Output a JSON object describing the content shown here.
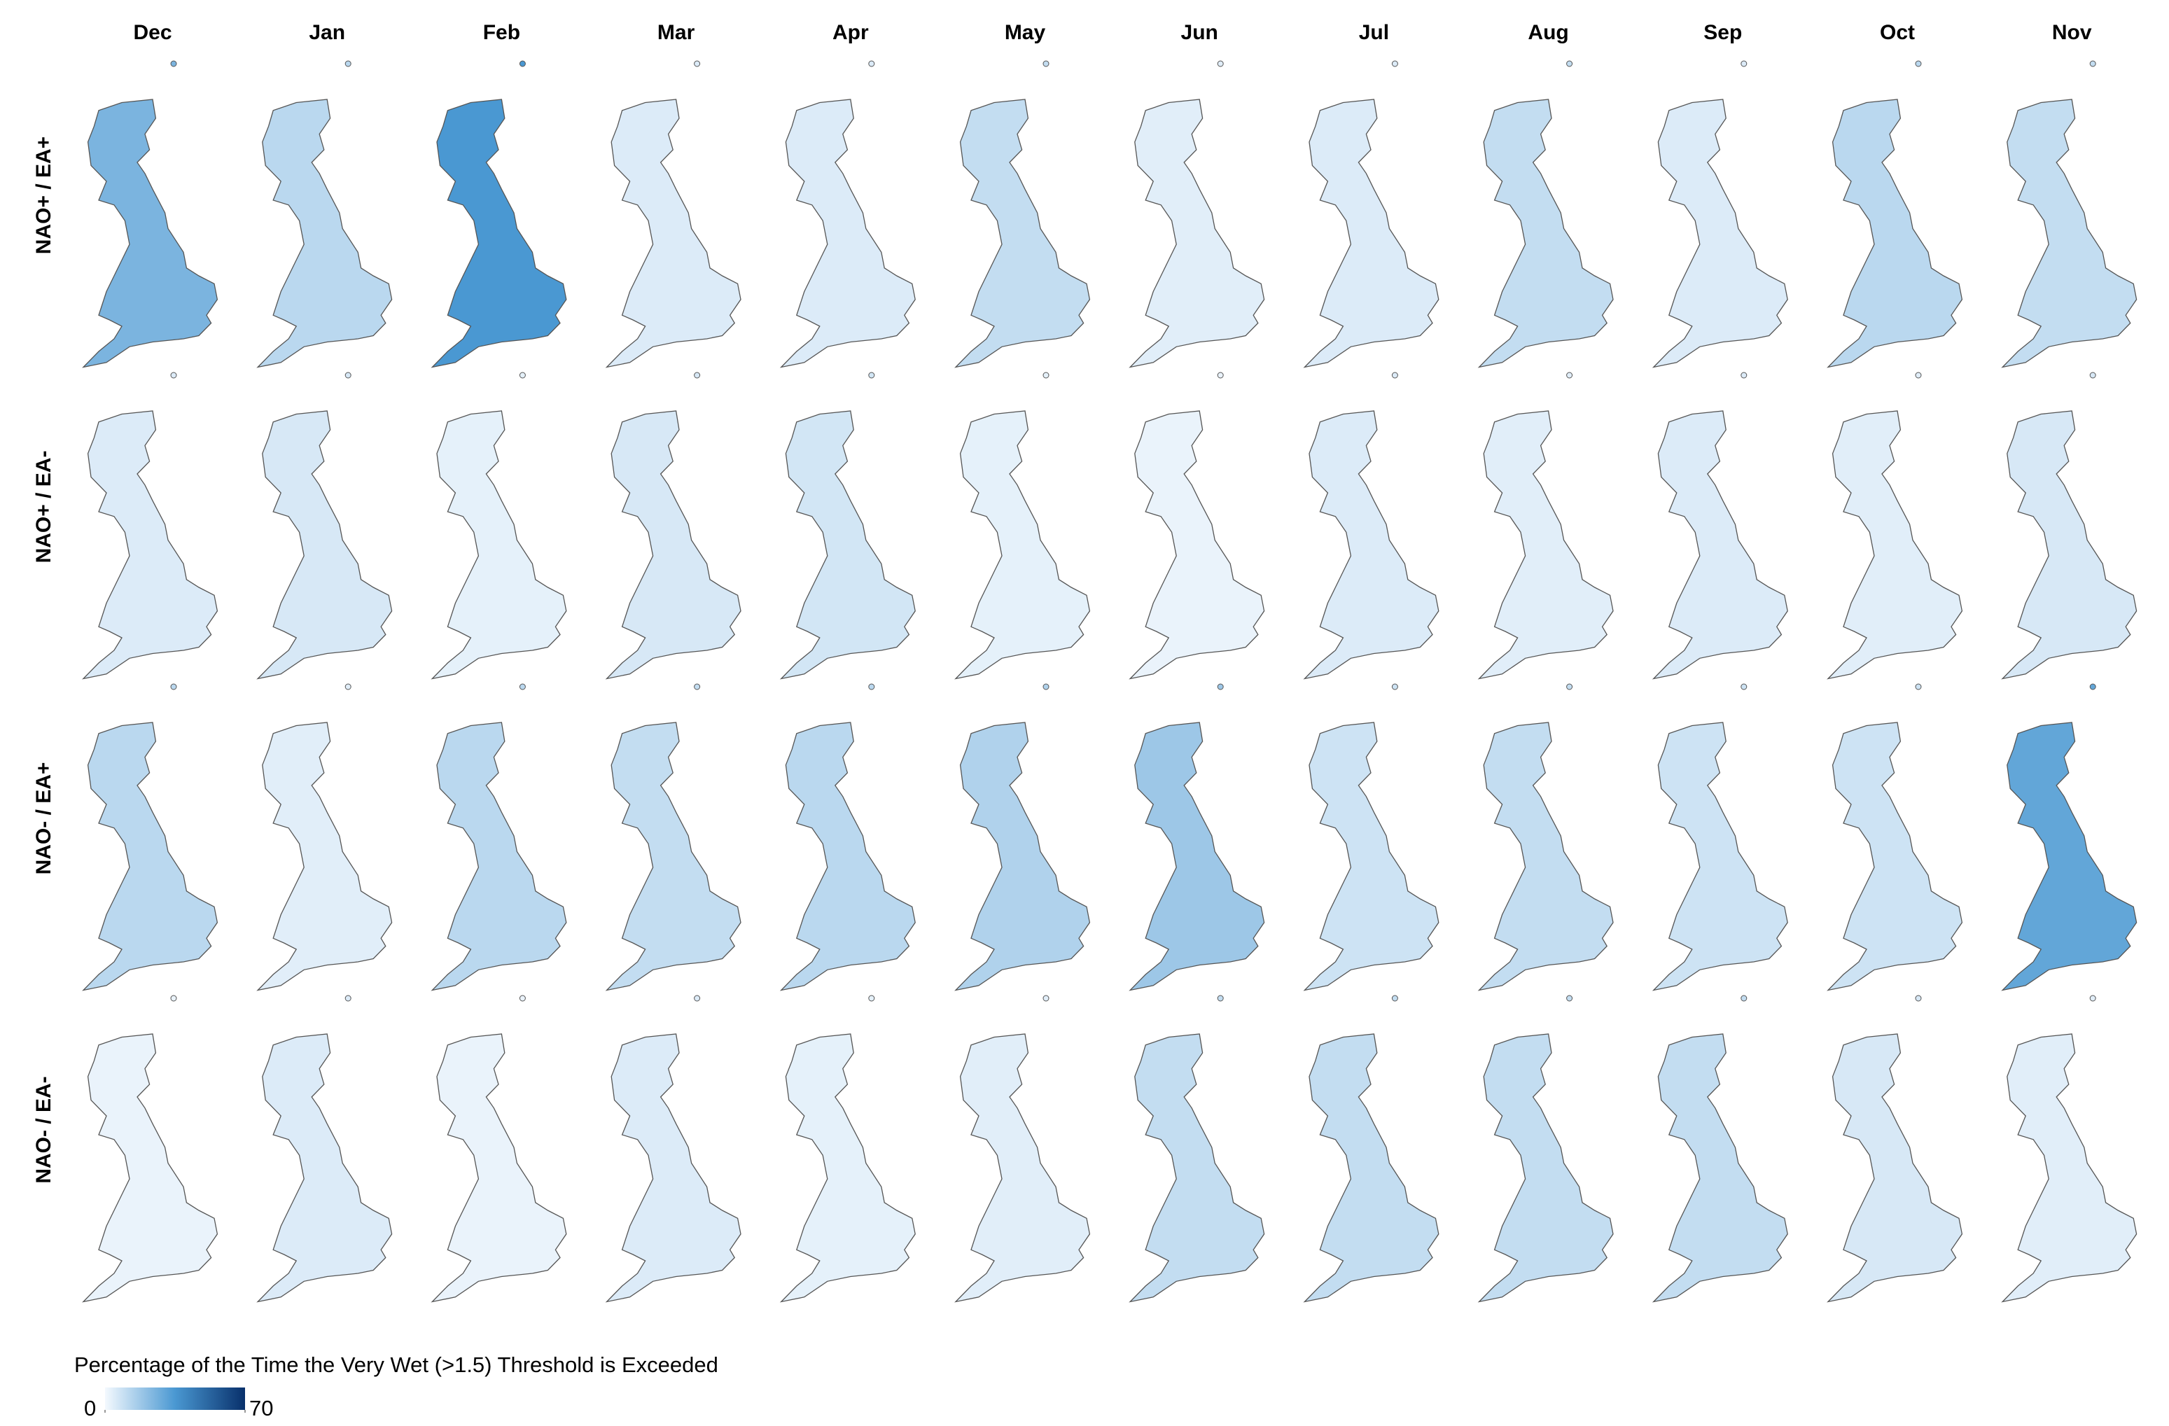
{
  "figure": {
    "columns": [
      "Dec",
      "Jan",
      "Feb",
      "Mar",
      "Apr",
      "May",
      "Jun",
      "Jul",
      "Aug",
      "Sep",
      "Oct",
      "Nov"
    ],
    "rows": [
      "NAO+ / EA+",
      "NAO+ / EA-",
      "NAO- / EA+",
      "NAO- / EA-"
    ],
    "intensity": [
      [
        25,
        12,
        35,
        5,
        5,
        10,
        4,
        5,
        10,
        5,
        12,
        10
      ],
      [
        5,
        6,
        3,
        6,
        7,
        3,
        2,
        5,
        4,
        5,
        4,
        6
      ],
      [
        12,
        4,
        12,
        10,
        12,
        14,
        18,
        8,
        10,
        8,
        8,
        30
      ],
      [
        2,
        5,
        2,
        5,
        3,
        4,
        10,
        10,
        10,
        10,
        6,
        4
      ]
    ],
    "colorbar": {
      "title": "Percentage of the Time the Very Wet (>1.5) Threshold is Exceeded",
      "lim": [
        0,
        70
      ],
      "ticks": [
        0,
        70
      ],
      "colors": [
        "#f4f9fe",
        "#4a98d2",
        "#08306b"
      ]
    }
  }
}
